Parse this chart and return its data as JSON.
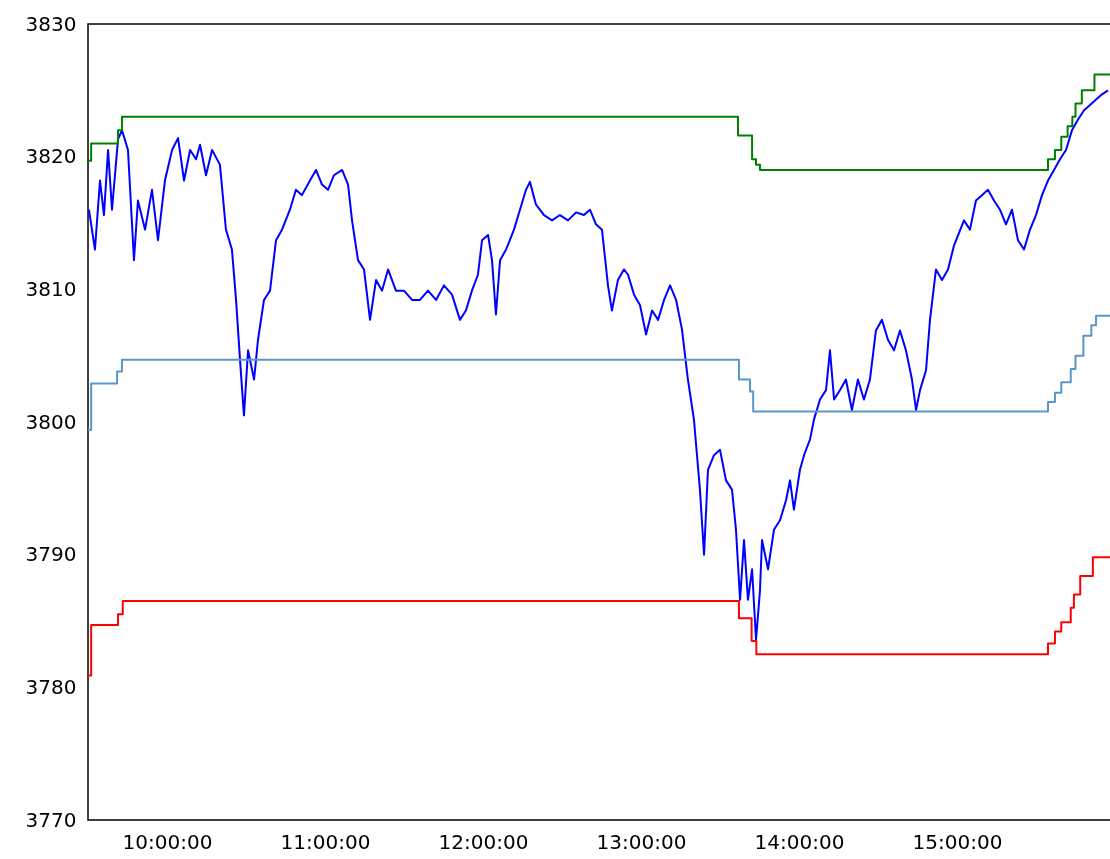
{
  "chart_data": {
    "type": "line",
    "xlim": [
      9.5,
      16
    ],
    "ylim": [
      3770,
      3830
    ],
    "xticks": [
      {
        "value": 10,
        "label": "10:00:00"
      },
      {
        "value": 11,
        "label": "11:00:00"
      },
      {
        "value": 12,
        "label": "12:00:00"
      },
      {
        "value": 13,
        "label": "13:00:00"
      },
      {
        "value": 14,
        "label": "14:00:00"
      },
      {
        "value": 15,
        "label": "15:00:00"
      }
    ],
    "yticks": [
      3770,
      3780,
      3790,
      3800,
      3810,
      3820,
      3830
    ],
    "series": [
      {
        "type": "line",
        "color": "#0000ff",
        "x": [
          9.506,
          9.544,
          9.576,
          9.601,
          9.627,
          9.652,
          9.69,
          9.715,
          9.753,
          9.791,
          9.816,
          9.861,
          9.905,
          9.943,
          9.987,
          10.032,
          10.07,
          10.108,
          10.146,
          10.184,
          10.209,
          10.247,
          10.285,
          10.335,
          10.373,
          10.411,
          10.437,
          10.462,
          10.487,
          10.513,
          10.551,
          10.576,
          10.614,
          10.652,
          10.69,
          10.728,
          10.778,
          10.816,
          10.854,
          10.905,
          10.943,
          10.981,
          11.019,
          11.057,
          11.108,
          11.146,
          11.171,
          11.209,
          11.247,
          11.285,
          11.323,
          11.361,
          11.399,
          11.449,
          11.5,
          11.551,
          11.601,
          11.652,
          11.703,
          11.753,
          11.804,
          11.854,
          11.892,
          11.93,
          11.968,
          11.994,
          12.032,
          12.057,
          12.082,
          12.108,
          12.146,
          12.196,
          12.234,
          12.272,
          12.297,
          12.335,
          12.386,
          12.437,
          12.487,
          12.538,
          12.589,
          12.639,
          12.677,
          12.715,
          12.753,
          12.791,
          12.816,
          12.854,
          12.892,
          12.918,
          12.956,
          12.994,
          13.032,
          13.07,
          13.108,
          13.146,
          13.184,
          13.222,
          13.259,
          13.297,
          13.335,
          13.373,
          13.399,
          13.424,
          13.462,
          13.5,
          13.538,
          13.576,
          13.601,
          13.627,
          13.652,
          13.677,
          13.703,
          13.728,
          13.753,
          13.766,
          13.804,
          13.842,
          13.88,
          13.918,
          13.943,
          13.968,
          14.006,
          14.032,
          14.07,
          14.095,
          14.133,
          14.171,
          14.196,
          14.222,
          14.259,
          14.297,
          14.335,
          14.373,
          14.411,
          14.449,
          14.487,
          14.525,
          14.563,
          14.601,
          14.639,
          14.677,
          14.715,
          14.741,
          14.766,
          14.804,
          14.829,
          14.867,
          14.905,
          14.943,
          14.981,
          15.044,
          15.082,
          15.12,
          15.158,
          15.196,
          15.234,
          15.272,
          15.31,
          15.348,
          15.386,
          15.424,
          15.462,
          15.5,
          15.538,
          15.576,
          15.614,
          15.652,
          15.69,
          15.728,
          15.766,
          15.804,
          15.842,
          15.88,
          15.918,
          15.956
        ],
        "values": [
          3816.0,
          3813.0,
          3818.2,
          3815.6,
          3820.5,
          3816.0,
          3821.3,
          3822.0,
          3820.5,
          3812.2,
          3816.7,
          3814.5,
          3817.5,
          3813.7,
          3818.2,
          3820.5,
          3821.4,
          3818.2,
          3820.5,
          3819.8,
          3820.9,
          3818.6,
          3820.5,
          3819.4,
          3814.5,
          3813.0,
          3809.2,
          3804.7,
          3800.5,
          3805.4,
          3803.2,
          3806.2,
          3809.2,
          3809.9,
          3813.7,
          3814.5,
          3816.0,
          3817.5,
          3817.1,
          3818.2,
          3819.0,
          3817.9,
          3817.5,
          3818.6,
          3819.0,
          3817.9,
          3815.2,
          3812.2,
          3811.5,
          3807.7,
          3810.7,
          3809.9,
          3811.5,
          3809.9,
          3809.9,
          3809.2,
          3809.2,
          3809.9,
          3809.2,
          3810.3,
          3809.6,
          3807.7,
          3808.4,
          3809.9,
          3811.1,
          3813.7,
          3814.1,
          3812.2,
          3808.1,
          3812.2,
          3813.0,
          3814.5,
          3816.0,
          3817.5,
          3818.1,
          3816.4,
          3815.6,
          3815.2,
          3815.6,
          3815.2,
          3815.8,
          3815.6,
          3816.0,
          3814.9,
          3814.5,
          3810.3,
          3808.4,
          3810.7,
          3811.5,
          3811.1,
          3809.6,
          3808.8,
          3806.6,
          3808.4,
          3807.7,
          3809.2,
          3810.3,
          3809.2,
          3807.0,
          3803.2,
          3800.2,
          3794.9,
          3790.0,
          3796.4,
          3797.5,
          3797.9,
          3795.6,
          3794.9,
          3791.9,
          3786.6,
          3791.1,
          3786.6,
          3788.9,
          3783.6,
          3787.3,
          3791.1,
          3788.9,
          3791.9,
          3792.6,
          3794.1,
          3795.6,
          3793.4,
          3796.4,
          3797.5,
          3798.7,
          3800.2,
          3801.7,
          3802.4,
          3805.4,
          3801.7,
          3802.4,
          3803.2,
          3800.9,
          3803.2,
          3801.7,
          3803.2,
          3806.9,
          3807.7,
          3806.2,
          3805.4,
          3806.9,
          3805.4,
          3803.2,
          3800.9,
          3802.4,
          3803.9,
          3807.7,
          3811.5,
          3810.7,
          3811.5,
          3813.3,
          3815.2,
          3814.5,
          3816.7,
          3817.1,
          3817.5,
          3816.7,
          3816.0,
          3814.9,
          3816.0,
          3813.7,
          3813.0,
          3814.5,
          3815.6,
          3817.1,
          3818.2,
          3819.0,
          3819.8,
          3820.5,
          3822.0,
          3822.8,
          3823.5,
          3823.9,
          3824.3,
          3824.7,
          3825.0
        ]
      },
      {
        "type": "step",
        "color": "#008000",
        "x": [
          9.5,
          9.52,
          9.69,
          9.715,
          13.614,
          13.703,
          13.728,
          13.753,
          15.576,
          15.62,
          15.66,
          15.7,
          15.73,
          15.75,
          15.79,
          15.87,
          16
        ],
        "values": [
          3819.7,
          3821.0,
          3822.0,
          3823.0,
          3821.6,
          3819.8,
          3819.4,
          3819.0,
          3819.8,
          3820.5,
          3821.5,
          3822.3,
          3823.0,
          3824.0,
          3825.0,
          3826.2,
          3826.2
        ]
      },
      {
        "type": "step",
        "color": "#5b96c8",
        "x": [
          9.5,
          9.52,
          9.684,
          9.715,
          13.62,
          13.69,
          13.71,
          15.576,
          15.62,
          15.66,
          15.72,
          15.75,
          15.8,
          15.85,
          15.88,
          16
        ],
        "values": [
          3799.4,
          3802.9,
          3803.8,
          3804.7,
          3803.2,
          3802.3,
          3800.8,
          3801.5,
          3802.2,
          3803.0,
          3804.0,
          3805.0,
          3806.5,
          3807.3,
          3808.0,
          3808.0
        ]
      },
      {
        "type": "step",
        "color": "#ff0000",
        "x": [
          9.5,
          9.52,
          9.69,
          9.72,
          13.62,
          13.7,
          13.73,
          15.576,
          15.62,
          15.66,
          15.72,
          15.74,
          15.78,
          15.86,
          16
        ],
        "values": [
          3780.9,
          3784.7,
          3785.5,
          3786.5,
          3785.2,
          3783.5,
          3782.5,
          3783.3,
          3784.2,
          3784.9,
          3786.0,
          3787.0,
          3788.4,
          3789.8,
          3789.8
        ]
      }
    ]
  }
}
